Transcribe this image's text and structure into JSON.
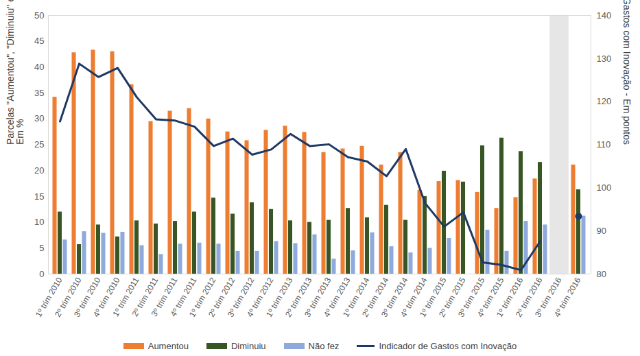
{
  "chart_data": {
    "type": "bar",
    "ylabel": "Parcelas \"Aumentou\", \"Diminuiu\" e \"Não fez\"\nEm %",
    "y2label": "Indicador de Gastos com Inovação - Em pontos",
    "categories": [
      "1º trim 2010",
      "2º trim 2010",
      "3º trim 2010",
      "4º trim 2010",
      "1º trim 2011",
      "2º trim 2011",
      "3º trim 2011",
      "4º trim 2011",
      "1º trim 2012",
      "2º trim 2012",
      "3º trim 2012",
      "4º trim 2012",
      "1º trim 2013",
      "2º trim 2013",
      "3º trim 2013",
      "4º trim 2013",
      "1º trim 2014",
      "2º trim 2014",
      "3º trim 2014",
      "4º trim 2014",
      "1º trim 2015",
      "2º trim 2015",
      "3º trim 2015",
      "4º trim 2015",
      "1º trim 2016",
      "2º trim 2016",
      "3º trim 2016",
      "4º trim 2016"
    ],
    "ylim": [
      0,
      50
    ],
    "yticks": [
      0,
      5,
      10,
      15,
      20,
      25,
      30,
      35,
      40,
      45,
      50
    ],
    "y2lim": [
      80,
      140
    ],
    "y2ticks": [
      80,
      90,
      100,
      110,
      120,
      130,
      140
    ],
    "grid": false,
    "legend": "bottom",
    "series": [
      {
        "name": "Aumentou",
        "type": "bar",
        "color": "#ed7d31",
        "values": [
          34.2,
          42.8,
          43.3,
          43.0,
          36.6,
          29.5,
          31.5,
          32.0,
          30.0,
          27.5,
          25.8,
          27.8,
          28.6,
          27.4,
          23.5,
          24.2,
          24.7,
          21.1,
          23.5,
          16.2,
          17.9,
          18.1,
          15.8,
          12.7,
          14.8,
          18.4,
          null,
          21.1
        ]
      },
      {
        "name": "Diminuiu",
        "type": "bar",
        "color": "#375623",
        "values": [
          12.0,
          5.7,
          9.5,
          7.2,
          10.3,
          9.7,
          10.2,
          12.0,
          14.7,
          11.6,
          13.8,
          12.5,
          10.3,
          10.0,
          10.4,
          12.7,
          10.9,
          13.3,
          10.4,
          15.0,
          19.9,
          17.8,
          24.8,
          26.3,
          23.7,
          21.6,
          null,
          16.3
        ]
      },
      {
        "name": "Não fez",
        "type": "bar",
        "color": "#8ea9db",
        "values": [
          6.6,
          8.2,
          7.9,
          8.1,
          5.5,
          3.8,
          5.8,
          6.0,
          5.8,
          4.4,
          4.4,
          6.3,
          5.9,
          7.6,
          2.9,
          4.5,
          8.0,
          5.3,
          4.1,
          5.0,
          6.9,
          null,
          8.5,
          4.4,
          10.2,
          9.5,
          null,
          11.2
        ]
      },
      {
        "name": "Indicador de Gastos com Inovação",
        "type": "line",
        "axis": "y2",
        "color": "#1f3864",
        "values": [
          115.4,
          128.8,
          125.7,
          127.8,
          121.0,
          115.9,
          115.6,
          114.2,
          109.7,
          111.4,
          107.7,
          108.9,
          112.5,
          109.7,
          110.1,
          107.1,
          106.1,
          102.7,
          109.0,
          96.5,
          91.0,
          94.3,
          82.7,
          82.1,
          80.9,
          87.6,
          null,
          93.4
        ]
      }
    ]
  }
}
